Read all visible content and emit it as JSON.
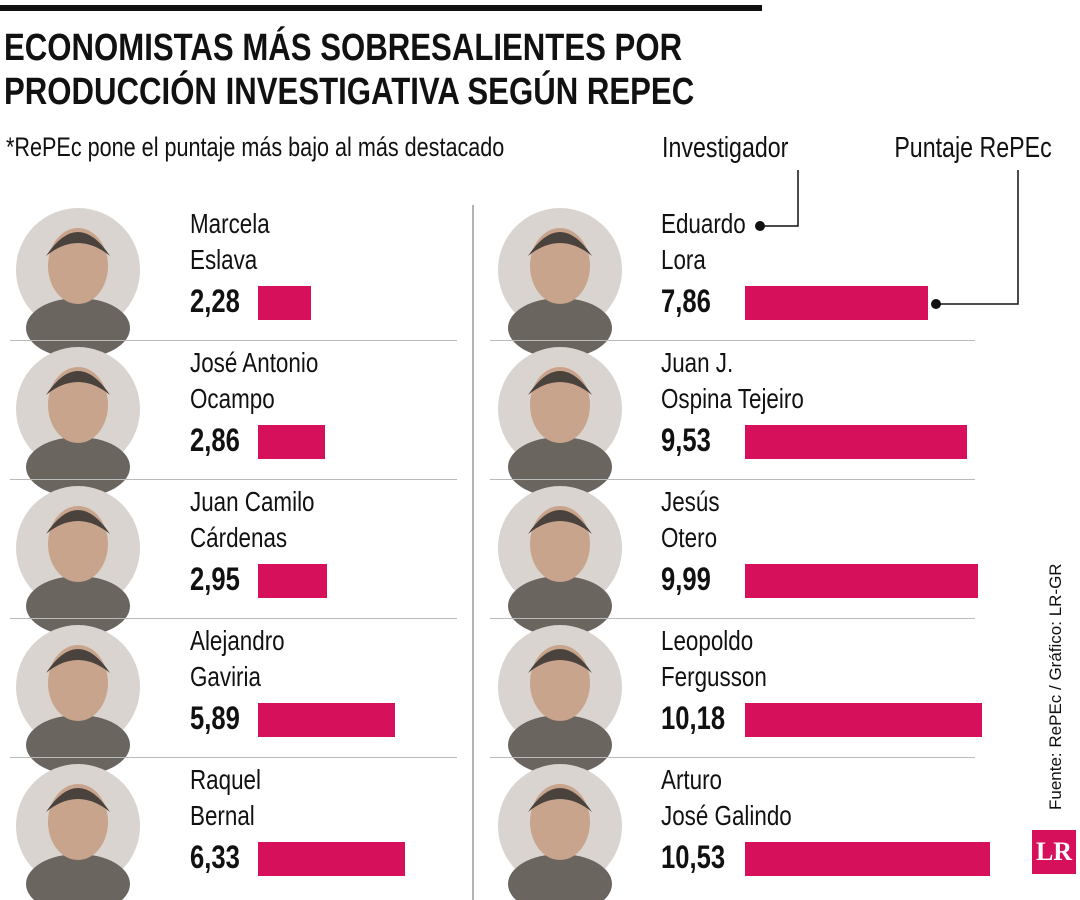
{
  "chart_data": {
    "type": "bar",
    "title": "ECONOMISTAS MÁS SOBRESALIENTES POR\nPRODUCCIÓN INVESTIGATIVA SEGÚN REPEC",
    "subtitle": "*RePEc pone el puntaje más bajo al más destacado",
    "annotations": {
      "name": "Investigador",
      "score": "Puntaje RePEc"
    },
    "categories": [
      "Marcela\nEslava",
      "José Antonio\nOcampo",
      "Juan Camilo\nCárdenas",
      "Alejandro\nGaviria",
      "Raquel\nBernal",
      "Eduardo\nLora",
      "Juan J.\nOspina Tejeiro",
      "Jesús\nOtero",
      "Leopoldo\nFergusson",
      "Arturo\nJosé Galindo"
    ],
    "values": [
      2.28,
      2.86,
      2.95,
      5.89,
      6.33,
      7.86,
      9.53,
      9.99,
      10.18,
      10.53
    ],
    "value_labels": [
      "2,28",
      "2,86",
      "2,95",
      "5,89",
      "6,33",
      "7,86",
      "9,53",
      "9,99",
      "10,18",
      "10,53"
    ],
    "color": "#d6105a",
    "source": "Fuente: RePEc / Gráfico: LR-GR",
    "logo": "LR"
  }
}
